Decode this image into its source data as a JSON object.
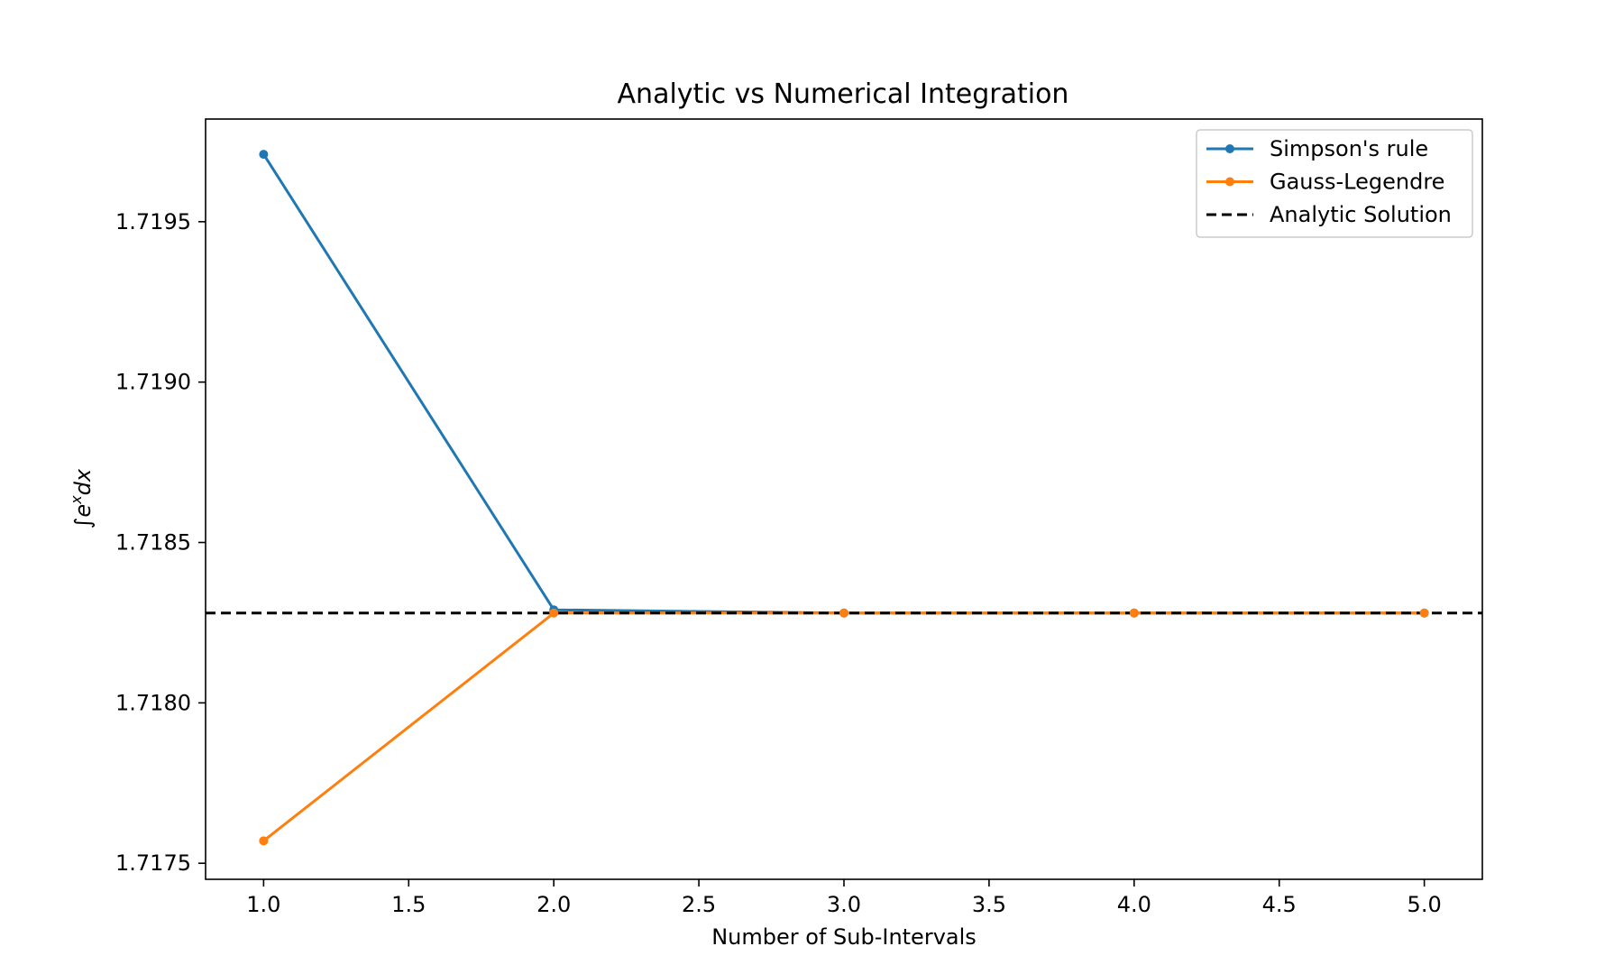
{
  "chart_data": {
    "type": "line",
    "title": "Analytic vs Numerical Integration",
    "xlabel": "Number of Sub-Intervals",
    "ylabel_parts": {
      "integral": "∫",
      "base": "e",
      "superscript": "x",
      "tail": "dx"
    },
    "x": [
      1,
      2,
      3,
      4,
      5
    ],
    "xlim": [
      0.8,
      5.2
    ],
    "ylim": [
      1.71745,
      1.71982
    ],
    "xticks": [
      1.0,
      1.5,
      2.0,
      2.5,
      3.0,
      3.5,
      4.0,
      4.5,
      5.0
    ],
    "xtick_labels": [
      "1.0",
      "1.5",
      "2.0",
      "2.5",
      "3.0",
      "3.5",
      "4.0",
      "4.5",
      "5.0"
    ],
    "yticks": [
      1.7175,
      1.718,
      1.7185,
      1.719,
      1.7195
    ],
    "ytick_labels": [
      "1.7175",
      "1.7180",
      "1.7185",
      "1.7190",
      "1.7195"
    ],
    "series": [
      {
        "name": "Simpson's rule",
        "color": "#1f77b4",
        "marker": "dot",
        "values": [
          1.71971,
          1.71829,
          1.71828,
          1.71828,
          1.71828
        ]
      },
      {
        "name": "Gauss-Legendre",
        "color": "#ff7f0e",
        "marker": "dot",
        "values": [
          1.71757,
          1.71828,
          1.71828,
          1.71828,
          1.71828
        ]
      }
    ],
    "reference_line": {
      "name": "Analytic Solution",
      "value": 1.71828,
      "color": "#000000",
      "style": "dashed"
    },
    "legend_position": "top-right",
    "grid": false
  }
}
